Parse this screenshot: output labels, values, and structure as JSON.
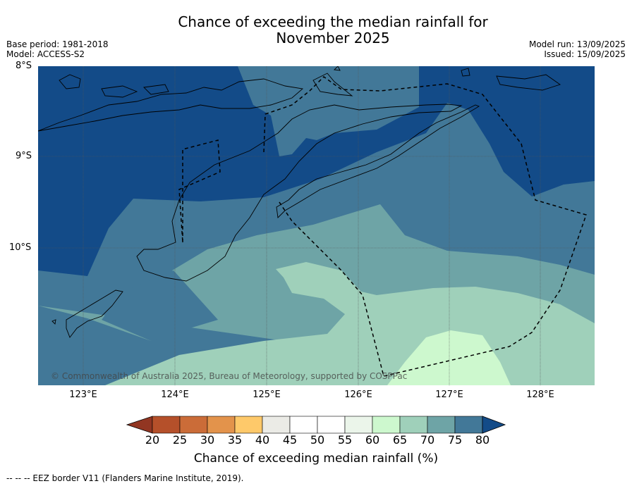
{
  "title_line1": "Chance of exceeding the median rainfall for",
  "title_line2": "November 2025",
  "base_period": "Base period: 1981-2018",
  "model": "Model: ACCESS-S2",
  "model_run": "Model run: 13/09/2025",
  "issued": "Issued: 15/09/2025",
  "map": {
    "lat_labels": [
      "8°S",
      "9°S",
      "10°S"
    ],
    "lon_labels": [
      "123°E",
      "124°E",
      "125°E",
      "126°E",
      "127°E",
      "128°E"
    ],
    "copyright": "© Commonwealth of Australia 2025, Bureau of Meteorology, supported by COSPPac",
    "colors": {
      "c75_80": "#134b88",
      "c70_75": "#427898",
      "c65_70": "#6ea4a6",
      "c60_65": "#9fd0ba",
      "c55_60": "#cdf8ce",
      "coast": "#000000",
      "eez": "#000000"
    }
  },
  "colorbar": {
    "ticks": [
      "20",
      "25",
      "30",
      "35",
      "40",
      "45",
      "50",
      "55",
      "60",
      "65",
      "70",
      "75",
      "80"
    ],
    "colors": [
      "#b5502a",
      "#cb6c38",
      "#e3934b",
      "#fec96a",
      "#ebebe6",
      "#ffffff",
      "#ffffff",
      "#ebf5ea",
      "#cdf8ce",
      "#9fd0ba",
      "#6ea4a6",
      "#427898"
    ],
    "under_color": "#923622",
    "over_color": "#134b88",
    "label": "Chance of exceeding median rainfall (%)"
  },
  "source_note": "-- -- -- EEZ border V11 (Flanders Marine Institute, 2019)."
}
